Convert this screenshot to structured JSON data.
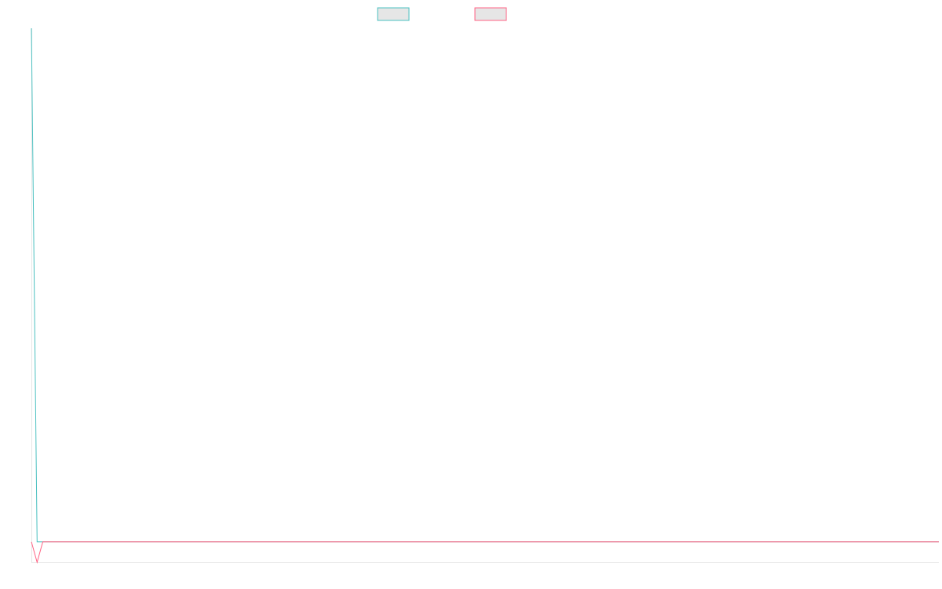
{
  "chart_data": {
    "type": "line",
    "title": "",
    "xlabel": "",
    "ylabel": "",
    "legend": "top-center",
    "grid": false,
    "x": [
      0,
      1,
      2,
      3,
      4,
      5,
      6,
      7,
      8,
      9,
      10,
      11,
      12,
      13,
      14,
      15,
      16,
      17,
      18,
      19,
      20,
      21,
      22,
      23,
      24,
      25,
      26,
      27,
      28,
      29,
      30,
      31,
      32,
      33,
      34,
      35,
      36,
      37,
      38,
      39,
      40,
      41,
      42,
      43,
      44,
      45,
      46,
      47,
      48,
      49,
      50,
      51,
      52,
      53,
      54,
      55,
      56,
      57,
      58,
      59,
      60,
      61,
      62,
      63,
      64,
      65,
      66,
      67,
      68,
      69,
      70,
      71,
      72,
      73,
      74,
      75,
      76,
      77,
      78,
      79,
      80,
      81,
      82,
      83,
      84,
      85,
      86,
      87,
      88,
      89,
      90,
      91,
      92,
      93,
      94,
      95,
      96,
      97,
      98,
      99,
      100,
      101,
      102,
      103,
      104,
      105,
      106,
      107,
      108,
      109,
      110,
      111,
      112,
      113,
      114,
      115,
      116,
      117,
      118,
      119,
      120,
      121,
      122,
      123,
      124,
      125,
      126,
      127,
      128,
      129,
      130,
      131,
      132,
      133,
      134,
      135,
      136,
      137,
      138,
      139,
      140,
      141,
      142,
      143,
      144,
      145,
      146,
      147,
      148,
      149,
      150,
      151,
      152,
      153,
      154,
      155,
      156,
      157,
      158,
      159
    ],
    "ylim": [
      -1,
      25
    ],
    "series": [
      {
        "color": "#4bc0c0",
        "values": [
          25,
          0,
          0,
          0,
          0,
          0,
          0,
          0,
          0,
          0,
          0,
          0,
          0,
          0,
          0,
          0,
          0,
          0,
          0,
          0,
          0,
          0,
          0,
          0,
          0,
          0,
          0,
          0,
          0,
          0,
          0,
          0,
          0,
          0,
          0,
          0,
          0,
          0,
          0,
          0,
          0,
          0,
          0,
          0,
          0,
          0,
          0,
          0,
          0,
          0,
          0,
          0,
          0,
          0,
          0,
          0,
          0,
          0,
          0,
          0,
          0,
          0,
          0,
          0,
          0,
          0,
          0,
          0,
          0,
          0,
          0,
          0,
          0,
          0,
          0,
          0,
          0,
          0,
          0,
          0,
          0,
          0,
          0,
          0,
          0,
          0,
          0,
          0,
          0,
          0,
          0,
          0,
          0,
          0,
          0,
          0,
          0,
          0,
          0,
          0,
          0,
          0,
          0,
          0,
          0,
          0,
          0,
          0,
          0,
          0,
          0,
          0,
          0,
          0,
          0,
          0,
          0,
          0,
          0,
          0,
          0,
          0,
          0,
          0,
          0,
          0,
          0,
          0,
          0,
          0,
          0,
          0,
          0,
          0,
          0,
          0,
          0,
          0,
          0,
          0,
          0,
          0,
          0,
          0,
          0,
          0,
          0,
          0,
          0,
          0,
          0,
          0,
          0,
          0,
          0,
          0,
          0,
          0,
          0,
          0
        ]
      },
      {
        "color": "#ff6384",
        "values": [
          0,
          -1,
          0,
          0,
          0,
          0,
          0,
          0,
          0,
          0,
          0,
          0,
          0,
          0,
          0,
          0,
          0,
          0,
          0,
          0,
          0,
          0,
          0,
          0,
          0,
          0,
          0,
          0,
          0,
          0,
          0,
          0,
          0,
          0,
          0,
          0,
          0,
          0,
          0,
          0,
          0,
          0,
          0,
          0,
          0,
          0,
          0,
          0,
          0,
          0,
          0,
          0,
          0,
          0,
          0,
          0,
          0,
          0,
          0,
          0,
          0,
          0,
          0,
          0,
          0,
          0,
          0,
          0,
          0,
          0,
          0,
          0,
          0,
          0,
          0,
          0,
          0,
          0,
          0,
          0,
          0,
          0,
          0,
          0,
          0,
          0,
          0,
          0,
          0,
          0,
          0,
          0,
          0,
          0,
          0,
          0,
          0,
          0,
          0,
          0,
          0,
          0,
          0,
          0,
          0,
          0,
          0,
          0,
          0,
          0,
          0,
          0,
          0,
          0,
          0,
          0,
          0,
          0,
          0,
          0,
          0,
          0,
          0,
          0,
          0,
          0,
          0,
          0,
          0,
          0,
          0,
          0,
          0,
          0,
          0,
          0,
          0,
          0,
          0,
          0,
          0,
          0,
          0,
          0,
          0,
          0,
          0,
          0,
          0,
          0,
          0,
          0,
          0,
          0,
          0,
          0,
          0,
          0,
          0,
          0
        ]
      }
    ]
  }
}
